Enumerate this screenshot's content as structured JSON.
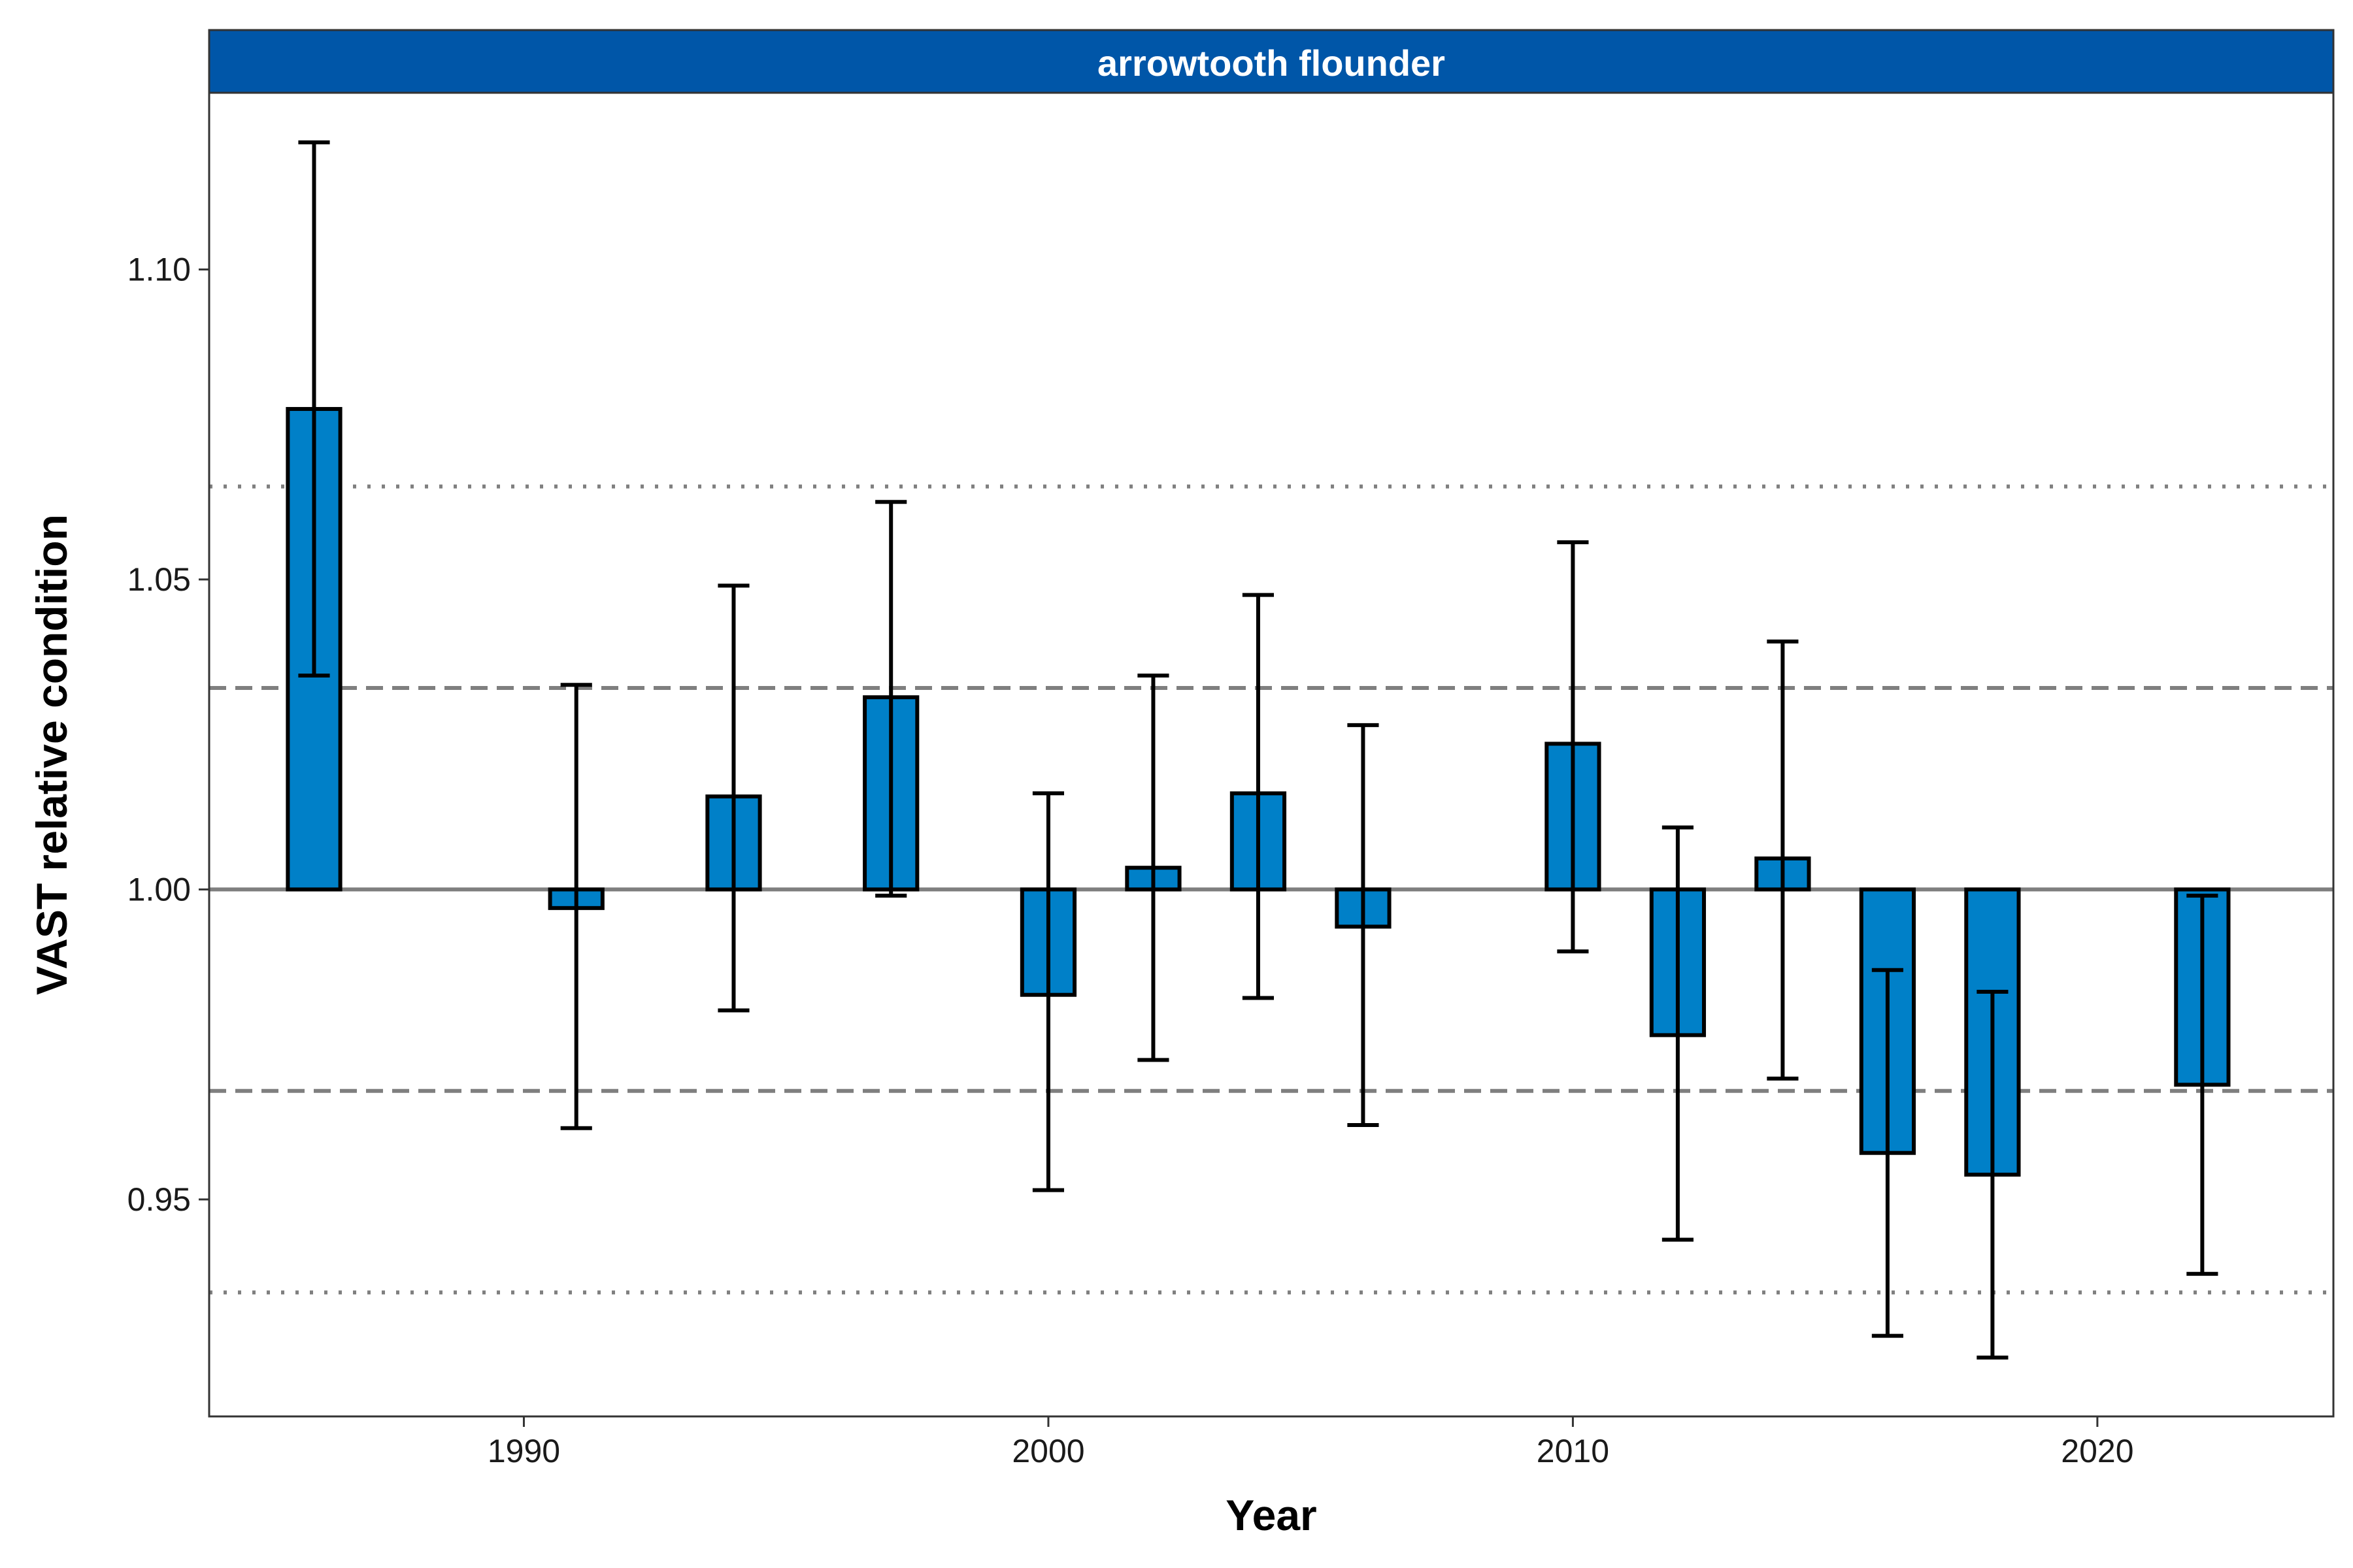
{
  "chart_data": {
    "type": "bar",
    "title": "arrowtooth flounder",
    "xlabel": "Year",
    "ylabel": "VAST relative condition",
    "xlim": [
      1984,
      2024.5
    ],
    "ylim": [
      0.915,
      1.1285
    ],
    "baseline": 1.0,
    "x_ticks": [
      1990,
      2000,
      2010,
      2020
    ],
    "y_ticks": [
      0.95,
      1.0,
      1.05,
      1.1
    ],
    "y_tick_labels": [
      "0.95",
      "1.00",
      "1.05",
      "1.10"
    ],
    "reference_lines": [
      {
        "style": "dotted",
        "value": 1.065
      },
      {
        "style": "dashed",
        "value": 1.0325
      },
      {
        "style": "dashed",
        "value": 0.9675
      },
      {
        "style": "dotted",
        "value": 0.935
      }
    ],
    "points": [
      {
        "year": 1986,
        "value": 1.0775,
        "lower": 1.0345,
        "upper": 1.1205
      },
      {
        "year": 1991,
        "value": 0.997,
        "lower": 0.9615,
        "upper": 1.033
      },
      {
        "year": 1994,
        "value": 1.015,
        "lower": 0.9805,
        "upper": 1.049
      },
      {
        "year": 1997,
        "value": 1.031,
        "lower": 0.999,
        "upper": 1.0625
      },
      {
        "year": 2000,
        "value": 0.983,
        "lower": 0.9515,
        "upper": 1.0155
      },
      {
        "year": 2002,
        "value": 1.0035,
        "lower": 0.9725,
        "upper": 1.0345
      },
      {
        "year": 2004,
        "value": 1.0155,
        "lower": 0.9825,
        "upper": 1.0475
      },
      {
        "year": 2006,
        "value": 0.994,
        "lower": 0.962,
        "upper": 1.0265
      },
      {
        "year": 2010,
        "value": 1.0235,
        "lower": 0.99,
        "upper": 1.056
      },
      {
        "year": 2012,
        "value": 0.9765,
        "lower": 0.9435,
        "upper": 1.01
      },
      {
        "year": 2014,
        "value": 1.005,
        "lower": 0.9695,
        "upper": 1.04
      },
      {
        "year": 2016,
        "value": 0.9575,
        "lower": 0.928,
        "upper": 0.987
      },
      {
        "year": 2018,
        "value": 0.954,
        "lower": 0.9245,
        "upper": 0.9835
      },
      {
        "year": 2022,
        "value": 0.9685,
        "lower": 0.938,
        "upper": 0.999
      }
    ],
    "colors": {
      "bar_fill": "#0080c8",
      "bar_stroke": "#000000",
      "strip_fill": "#0056a8",
      "reference": "#7f7f7f",
      "baseline": "#7f7f7f",
      "error_bar": "#000000"
    }
  }
}
